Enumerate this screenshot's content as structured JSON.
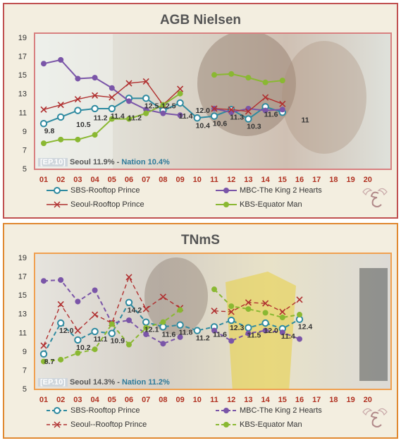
{
  "chart_data": [
    {
      "type": "line",
      "title": "AGB Nielsen",
      "x": [
        "01",
        "02",
        "03",
        "04",
        "05",
        "06",
        "07",
        "08",
        "09",
        "10",
        "11",
        "12",
        "13",
        "14",
        "15",
        "16",
        "17",
        "18",
        "19",
        "20"
      ],
      "ylim": [
        5,
        19
      ],
      "yticks": [
        5,
        7,
        9,
        11,
        13,
        15,
        17,
        19
      ],
      "series": [
        {
          "name": "SBS-Rooftop Prince",
          "color": "#2e8aa0",
          "marker": "circle",
          "values": [
            9.8,
            10.5,
            11.2,
            11.4,
            11.4,
            12.5,
            12.5,
            11.2,
            12.0,
            10.4,
            10.6,
            11.3,
            10.3,
            11.6,
            11.0
          ]
        },
        {
          "name": "MBC-The King 2 Hearts",
          "color": "#7a55a8",
          "marker": "circle",
          "values": [
            16.2,
            16.6,
            14.6,
            14.7,
            13.6,
            12.2,
            11.3,
            10.9,
            10.7,
            null,
            11.4,
            11.0,
            11.4,
            11.2,
            11.3
          ]
        },
        {
          "name": "Seoul-Rooftop Prince",
          "color": "#b03030",
          "marker": "x",
          "values": [
            11.3,
            11.8,
            12.4,
            12.8,
            12.6,
            14.1,
            14.3,
            11.8,
            13.5,
            null,
            11.4,
            11.3,
            11.1,
            12.6,
            11.9
          ]
        },
        {
          "name": "KBS-Equator Man",
          "color": "#8ab832",
          "marker": "circle",
          "values": [
            7.7,
            8.1,
            8.1,
            8.6,
            10.3,
            10.3,
            10.9,
            11.8,
            13.0,
            null,
            15.0,
            15.1,
            14.7,
            14.2,
            14.4
          ]
        }
      ],
      "labels": [
        {
          "i": 0,
          "v": 9.8,
          "text": "9.8"
        },
        {
          "i": 2,
          "v": 10.5,
          "text": "10.5"
        },
        {
          "i": 3,
          "v": 11.2,
          "text": "11.2"
        },
        {
          "i": 4,
          "v": 11.4,
          "text": "11.4"
        },
        {
          "i": 5,
          "v": 11.2,
          "text": "11.2"
        },
        {
          "i": 6,
          "v": 12.5,
          "text": "12.5"
        },
        {
          "i": 7,
          "v": 12.5,
          "text": "12.5"
        },
        {
          "i": 8,
          "v": 11.4,
          "text": "11.4"
        },
        {
          "i": 9,
          "v": 12.0,
          "text": "12.0"
        },
        {
          "i": 9,
          "v": 10.4,
          "text": "10.4"
        },
        {
          "i": 10,
          "v": 10.6,
          "text": "10.6"
        },
        {
          "i": 11,
          "v": 11.3,
          "text": "11.3"
        },
        {
          "i": 12,
          "v": 10.3,
          "text": "10.3"
        },
        {
          "i": 13,
          "v": 11.6,
          "text": "11.6"
        },
        {
          "i": 15,
          "v": 11.0,
          "text": "11"
        }
      ],
      "caption": {
        "ep": "[EP.10]",
        "seoul": "Seoul 11.9%",
        "sep": "-",
        "nation": "Nation 10.4%"
      }
    },
    {
      "type": "line",
      "title": "TNmS",
      "x": [
        "01",
        "02",
        "03",
        "04",
        "05",
        "06",
        "07",
        "08",
        "09",
        "10",
        "11",
        "12",
        "13",
        "14",
        "15",
        "16",
        "17",
        "18",
        "19",
        "20"
      ],
      "ylim": [
        5,
        19
      ],
      "yticks": [
        5,
        7,
        9,
        11,
        13,
        15,
        17,
        19
      ],
      "series": [
        {
          "name": "SBS-Rooftop Prince",
          "color": "#2e8aa0",
          "marker": "circle",
          "values": [
            8.7,
            12.0,
            10.2,
            11.1,
            10.9,
            14.2,
            12.1,
            11.6,
            11.8,
            11.2,
            11.6,
            12.3,
            11.5,
            12.0,
            11.4,
            12.4
          ]
        },
        {
          "name": "MBC-The King 2 Hearts",
          "color": "#7a55a8",
          "marker": "circle",
          "values": [
            16.5,
            16.6,
            14.3,
            15.5,
            12.0,
            12.3,
            10.8,
            9.8,
            10.5,
            null,
            11.2,
            10.1,
            10.9,
            11.2,
            11.0,
            10.3
          ]
        },
        {
          "name": "Seoul--Rooftop Prince",
          "color": "#b03030",
          "marker": "x",
          "values": [
            9.6,
            14.0,
            11.2,
            12.9,
            12.0,
            16.9,
            13.5,
            14.8,
            13.6,
            null,
            13.3,
            13.2,
            14.2,
            14.1,
            13.2,
            14.5
          ]
        },
        {
          "name": "KBS-Equator Man",
          "color": "#8ab832",
          "marker": "circle",
          "values": [
            7.9,
            8.1,
            8.8,
            9.2,
            11.9,
            9.7,
            11.5,
            12.1,
            13.4,
            null,
            15.6,
            13.8,
            13.5,
            13.1,
            12.6,
            12.9
          ]
        }
      ],
      "labels": [
        {
          "i": 0,
          "v": 8.7,
          "text": "8.7"
        },
        {
          "i": 1,
          "v": 12.0,
          "text": "12.0"
        },
        {
          "i": 2,
          "v": 10.2,
          "text": "10.2"
        },
        {
          "i": 3,
          "v": 11.1,
          "text": "11.1"
        },
        {
          "i": 4,
          "v": 10.9,
          "text": "10.9"
        },
        {
          "i": 5,
          "v": 14.2,
          "text": "14.2"
        },
        {
          "i": 6,
          "v": 12.1,
          "text": "12.1"
        },
        {
          "i": 7,
          "v": 11.6,
          "text": "11.6"
        },
        {
          "i": 8,
          "v": 11.8,
          "text": "11.8"
        },
        {
          "i": 9,
          "v": 11.2,
          "text": "11.2"
        },
        {
          "i": 10,
          "v": 11.6,
          "text": "11.6"
        },
        {
          "i": 11,
          "v": 12.3,
          "text": "12.3"
        },
        {
          "i": 12,
          "v": 11.5,
          "text": "11.5"
        },
        {
          "i": 13,
          "v": 12.0,
          "text": "12.0"
        },
        {
          "i": 14,
          "v": 11.4,
          "text": "11.4"
        },
        {
          "i": 15,
          "v": 12.4,
          "text": "12.4"
        }
      ],
      "caption": {
        "ep": "[EP.10]",
        "seoul": "Seoul 14.3%",
        "sep": "-",
        "nation": "Nation 11.2%"
      }
    }
  ],
  "colors": {
    "agb_border": "#c05050",
    "tnms_border": "#e08830",
    "panel_bg": "#f3eee0",
    "episode_label": "#b03020"
  },
  "icons": {
    "logo": "winged-e-logo"
  }
}
